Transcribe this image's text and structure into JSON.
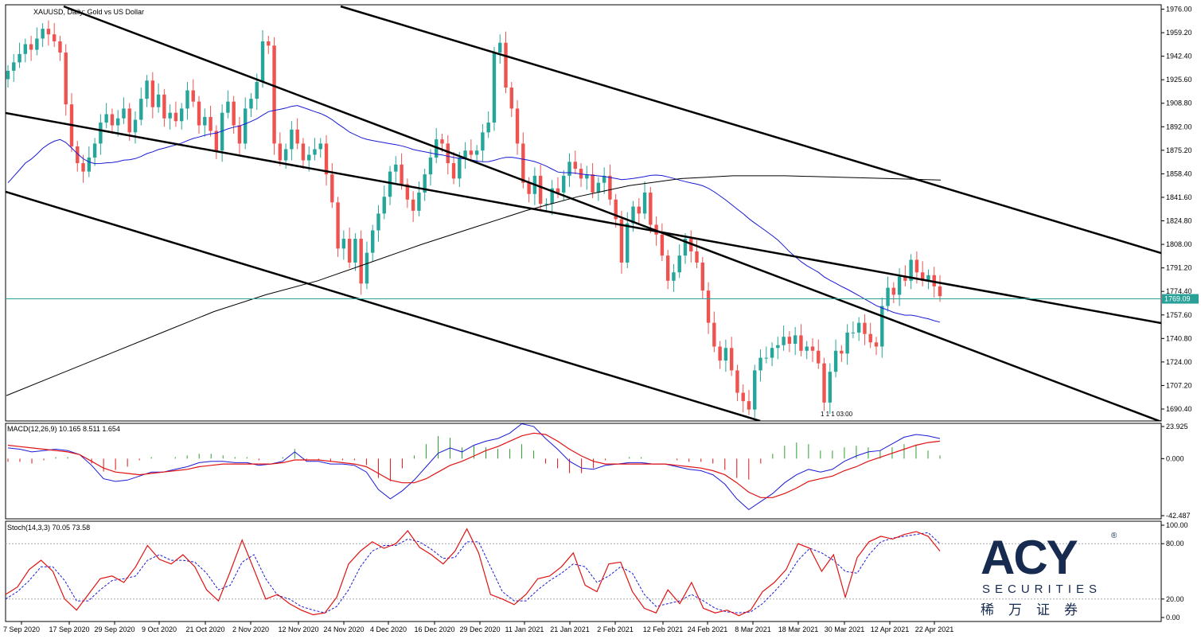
{
  "chart_data": {
    "type": "candlestick",
    "symbol_label": "XAUUSD, Daily:  Gold vs US Dollar",
    "x_labels": [
      "7 Sep 2020",
      "17 Sep 2020",
      "29 Sep 2020",
      "9 Oct 2020",
      "21 Oct 2020",
      "2 Nov 2020",
      "12 Nov 2020",
      "24 Nov 2020",
      "4 Dec 2020",
      "16 Dec 2020",
      "29 Dec 2020",
      "11 Jan 2021",
      "21 Jan 2021",
      "2 Feb 2021",
      "12 Feb 2021",
      "24 Feb 2021",
      "8 Mar 2021",
      "18 Mar 2021",
      "30 Mar 2021",
      "12 Apr 2021",
      "22 Apr 2021"
    ],
    "price_ticks": [
      "1976.00",
      "1959.20",
      "1942.40",
      "1925.60",
      "1908.80",
      "1892.00",
      "1875.20",
      "1858.40",
      "1841.60",
      "1824.80",
      "1808.00",
      "1791.20",
      "1774.40",
      "1757.60",
      "1740.80",
      "1724.00",
      "1707.20",
      "1690.40"
    ],
    "ylim": [
      1683,
      1978
    ],
    "current_price": 1769.09,
    "current_price_label": "1769.09",
    "time_marker_label": "1 1 1 03:00",
    "candles_close": [
      1932,
      1938,
      1944,
      1951,
      1947,
      1955,
      1962,
      1958,
      1953,
      1945,
      1908,
      1878,
      1866,
      1860,
      1870,
      1880,
      1895,
      1901,
      1893,
      1898,
      1905,
      1888,
      1897,
      1912,
      1925,
      1906,
      1915,
      1898,
      1902,
      1896,
      1905,
      1918,
      1910,
      1893,
      1899,
      1889,
      1875,
      1902,
      1910,
      1893,
      1880,
      1905,
      1912,
      1924,
      1953,
      1950,
      1880,
      1868,
      1876,
      1890,
      1880,
      1868,
      1872,
      1876,
      1880,
      1858,
      1838,
      1805,
      1812,
      1795,
      1812,
      1780,
      1802,
      1818,
      1830,
      1842,
      1860,
      1865,
      1851,
      1840,
      1832,
      1845,
      1858,
      1870,
      1883,
      1880,
      1866,
      1855,
      1870,
      1875,
      1872,
      1875,
      1888,
      1895,
      1945,
      1952,
      1920,
      1905,
      1880,
      1852,
      1844,
      1857,
      1837,
      1837,
      1848,
      1845,
      1857,
      1867,
      1862,
      1855,
      1858,
      1845,
      1852,
      1857,
      1840,
      1826,
      1795,
      1823,
      1835,
      1830,
      1845,
      1822,
      1815,
      1800,
      1782,
      1788,
      1800,
      1812,
      1803,
      1795,
      1775,
      1752,
      1735,
      1725,
      1734,
      1718,
      1702,
      1696,
      1690,
      1718,
      1727,
      1727,
      1734,
      1736,
      1742,
      1737,
      1743,
      1732,
      1735,
      1732,
      1723,
      1695,
      1717,
      1732,
      1730,
      1745,
      1745,
      1752,
      1744,
      1738,
      1735,
      1764,
      1777,
      1772,
      1785,
      1782,
      1797,
      1788,
      1782,
      1786,
      1778,
      1771
    ],
    "ma_fast": {
      "name": "",
      "color": "#1a1ad6"
    },
    "ma_slow": {
      "name": "",
      "color": "#000000"
    },
    "macd": {
      "label": "MACD(12,26,9) 10.165 8.511 1.654",
      "ticks": [
        "23.925",
        "0.000",
        "-42.487"
      ],
      "ylim": [
        -42.487,
        23.925
      ],
      "macd_line": [
        8,
        7,
        5,
        6,
        7,
        6,
        3,
        -5,
        -15,
        -17,
        -16,
        -13,
        -10,
        -10,
        -8,
        -6,
        -3,
        -2,
        -2,
        -3,
        -3,
        -5,
        -4,
        -2,
        5,
        -2,
        -2,
        -4,
        -4,
        -5,
        -10,
        -23,
        -30,
        -24,
        -16,
        -6,
        4,
        8,
        5,
        10,
        13,
        15,
        19,
        26,
        24,
        15,
        7,
        -2,
        -7,
        -8,
        -5,
        -4,
        -3,
        -3,
        -4,
        -4,
        -6,
        -8,
        -9,
        -12,
        -19,
        -30,
        -38,
        -32,
        -26,
        -18,
        -12,
        -8,
        -10,
        -8,
        -2,
        2,
        5,
        6,
        11,
        16,
        18,
        17,
        15
      ],
      "signal_line": [
        10,
        9,
        8,
        7,
        6,
        5,
        3,
        -2,
        -7,
        -10,
        -11,
        -12,
        -11,
        -10,
        -9,
        -8,
        -6,
        -5,
        -4,
        -4,
        -4,
        -4,
        -4,
        -3,
        -1,
        -1,
        -1,
        -2,
        -3,
        -4,
        -6,
        -11,
        -16,
        -18,
        -18,
        -15,
        -10,
        -5,
        -2,
        2,
        6,
        9,
        13,
        17,
        19,
        18,
        13,
        7,
        2,
        -2,
        -4,
        -4,
        -4,
        -4,
        -4,
        -4,
        -5,
        -6,
        -7,
        -9,
        -12,
        -18,
        -25,
        -29,
        -29,
        -26,
        -22,
        -17,
        -15,
        -13,
        -9,
        -6,
        -2,
        1,
        4,
        7,
        10,
        12,
        13
      ],
      "colors": {
        "macd": "#1a1ad6",
        "signal": "#e01212",
        "hist_pos": "#2ca02c",
        "hist_neg": "#e01212"
      }
    },
    "stoch": {
      "label": "Stoch(14,3,3) 70.05 73.58",
      "ticks": [
        "100.00",
        "80.00",
        "20.00",
        "0.00"
      ],
      "ylim": [
        0,
        100
      ],
      "levels": [
        80,
        20
      ],
      "k_line": [
        25,
        33,
        52,
        62,
        50,
        20,
        8,
        25,
        42,
        45,
        38,
        55,
        78,
        63,
        58,
        68,
        55,
        30,
        18,
        50,
        84,
        52,
        20,
        25,
        15,
        8,
        3,
        5,
        22,
        58,
        72,
        82,
        75,
        80,
        94,
        76,
        68,
        58,
        72,
        96,
        70,
        25,
        20,
        14,
        25,
        42,
        45,
        55,
        70,
        35,
        28,
        58,
        60,
        28,
        10,
        5,
        30,
        15,
        38,
        10,
        5,
        8,
        2,
        8,
        28,
        38,
        52,
        80,
        75,
        50,
        68,
        22,
        65,
        82,
        88,
        85,
        90,
        93,
        88,
        72
      ],
      "d_line": [
        20,
        28,
        40,
        55,
        55,
        40,
        18,
        18,
        30,
        40,
        42,
        45,
        62,
        68,
        62,
        62,
        60,
        48,
        30,
        35,
        60,
        68,
        42,
        24,
        20,
        12,
        8,
        5,
        12,
        30,
        55,
        72,
        78,
        78,
        85,
        82,
        74,
        64,
        65,
        82,
        82,
        55,
        28,
        18,
        18,
        30,
        40,
        48,
        58,
        55,
        38,
        45,
        55,
        48,
        25,
        12,
        15,
        18,
        25,
        18,
        10,
        6,
        5,
        6,
        15,
        28,
        42,
        62,
        75,
        70,
        62,
        50,
        48,
        68,
        82,
        86,
        88,
        90,
        92,
        80
      ],
      "colors": {
        "k": "#e01212",
        "d": "#1a1ad6"
      }
    }
  },
  "logo": {
    "main": "ACY",
    "registered": "®",
    "sub": "SECURITIES",
    "cn": "稀万证券"
  }
}
